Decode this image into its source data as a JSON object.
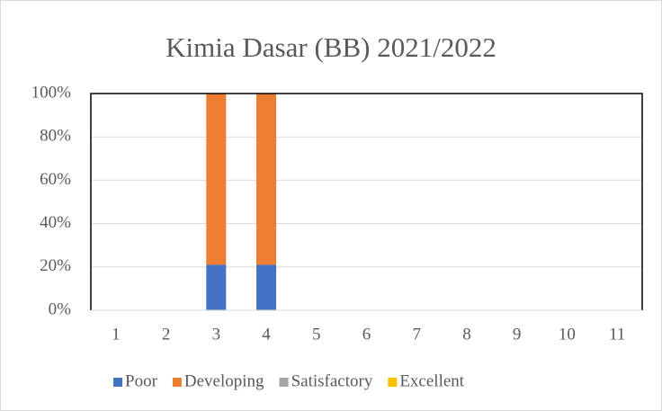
{
  "chart_data": {
    "type": "stacked_bar",
    "title": "Kimia Dasar (BB) 2021/2022",
    "categories": [
      "1",
      "2",
      "3",
      "4",
      "5",
      "6",
      "7",
      "8",
      "9",
      "10",
      "11"
    ],
    "series": [
      {
        "name": "Poor",
        "color": "#4472c4",
        "values": [
          0,
          0,
          21,
          21,
          0,
          0,
          0,
          0,
          0,
          0,
          0
        ]
      },
      {
        "name": "Developing",
        "color": "#ed7d31",
        "values": [
          0,
          0,
          79,
          79,
          0,
          0,
          0,
          0,
          0,
          0,
          0
        ]
      },
      {
        "name": "Satisfactory",
        "color": "#a5a5a5",
        "values": [
          0,
          0,
          0,
          0,
          0,
          0,
          0,
          0,
          0,
          0,
          0
        ]
      },
      {
        "name": "Excellent",
        "color": "#ffc000",
        "values": [
          0,
          0,
          0,
          0,
          0,
          0,
          0,
          0,
          0,
          0,
          0
        ]
      }
    ],
    "ylim": [
      0,
      100
    ],
    "yticks": [
      {
        "value": 0,
        "label": "0%"
      },
      {
        "value": 20,
        "label": "20%"
      },
      {
        "value": 40,
        "label": "40%"
      },
      {
        "value": 60,
        "label": "60%"
      },
      {
        "value": 80,
        "label": "80%"
      },
      {
        "value": 100,
        "label": "100%"
      }
    ],
    "grid": true,
    "legend": "bottom"
  }
}
